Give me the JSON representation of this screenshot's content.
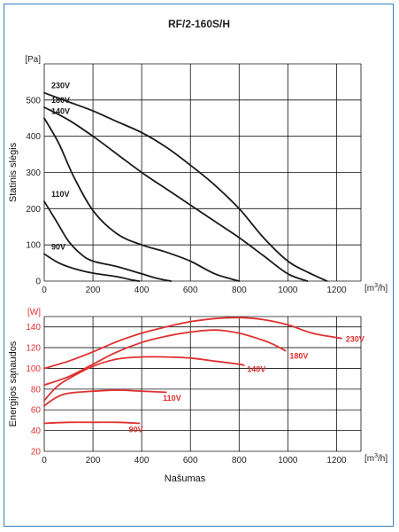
{
  "title": "RF/2-160S/H",
  "colors": {
    "frame": "#2f7fc1",
    "pressure": "#1a1a1a",
    "power": "#e03030",
    "grid": "#111111"
  },
  "chart_data": [
    {
      "type": "line",
      "ylabel": "Statinis slėgis",
      "yunit": "[Pa]",
      "xunit_base": "[m",
      "xunit_sup": "3",
      "xunit_tail": "/h]",
      "xlim": [
        0,
        1300
      ],
      "ylim": [
        0,
        600
      ],
      "xticks": [
        0,
        200,
        400,
        600,
        800,
        1000,
        1200
      ],
      "yticks": [
        0,
        100,
        200,
        300,
        400,
        500
      ],
      "grid": true,
      "series": [
        {
          "name": "230V",
          "points": [
            [
              0,
              520
            ],
            [
              100,
              495
            ],
            [
              200,
              470
            ],
            [
              300,
              440
            ],
            [
              400,
              410
            ],
            [
              500,
              370
            ],
            [
              600,
              320
            ],
            [
              700,
              265
            ],
            [
              800,
              200
            ],
            [
              900,
              120
            ],
            [
              1000,
              55
            ],
            [
              1080,
              25
            ],
            [
              1160,
              0
            ]
          ]
        },
        {
          "name": "180V",
          "points": [
            [
              0,
              480
            ],
            [
              100,
              445
            ],
            [
              200,
              400
            ],
            [
              300,
              350
            ],
            [
              400,
              300
            ],
            [
              500,
              255
            ],
            [
              600,
              210
            ],
            [
              700,
              165
            ],
            [
              800,
              120
            ],
            [
              900,
              70
            ],
            [
              1000,
              20
            ],
            [
              1080,
              0
            ]
          ]
        },
        {
          "name": "140V",
          "points": [
            [
              0,
              450
            ],
            [
              60,
              380
            ],
            [
              120,
              290
            ],
            [
              200,
              195
            ],
            [
              300,
              130
            ],
            [
              400,
              100
            ],
            [
              500,
              80
            ],
            [
              600,
              55
            ],
            [
              700,
              20
            ],
            [
              800,
              0
            ]
          ]
        },
        {
          "name": "110V",
          "points": [
            [
              0,
              220
            ],
            [
              50,
              165
            ],
            [
              100,
              110
            ],
            [
              150,
              75
            ],
            [
              200,
              55
            ],
            [
              300,
              40
            ],
            [
              400,
              20
            ],
            [
              460,
              8
            ],
            [
              520,
              0
            ]
          ]
        },
        {
          "name": "90V",
          "points": [
            [
              0,
              75
            ],
            [
              60,
              50
            ],
            [
              120,
              35
            ],
            [
              200,
              22
            ],
            [
              300,
              12
            ],
            [
              360,
              3
            ],
            [
              390,
              0
            ]
          ]
        }
      ]
    },
    {
      "type": "line",
      "ylabel": "Energijos sąnaudos",
      "yunit": "[W]",
      "xlabel": "Našumas",
      "xunit_base": "[m",
      "xunit_sup": "3",
      "xunit_tail": "/h]",
      "xlim": [
        0,
        1300
      ],
      "ylim": [
        20,
        150
      ],
      "xticks": [
        0,
        200,
        400,
        600,
        800,
        1000,
        1200
      ],
      "yticks": [
        20,
        40,
        60,
        80,
        100,
        120,
        140
      ],
      "grid": true,
      "series": [
        {
          "name": "230V",
          "points": [
            [
              0,
              100
            ],
            [
              100,
              107
            ],
            [
              200,
              116
            ],
            [
              300,
              126
            ],
            [
              400,
              134
            ],
            [
              500,
              140
            ],
            [
              600,
              145
            ],
            [
              700,
              148
            ],
            [
              800,
              149
            ],
            [
              900,
              147
            ],
            [
              1000,
              142
            ],
            [
              1100,
              134
            ],
            [
              1220,
              129
            ]
          ]
        },
        {
          "name": "180V",
          "points": [
            [
              0,
              84
            ],
            [
              100,
              92
            ],
            [
              200,
              104
            ],
            [
              300,
              116
            ],
            [
              400,
              125
            ],
            [
              500,
              131
            ],
            [
              600,
              135
            ],
            [
              700,
              137
            ],
            [
              800,
              134
            ],
            [
              900,
              127
            ],
            [
              950,
              122
            ],
            [
              990,
              117
            ]
          ]
        },
        {
          "name": "140V",
          "points": [
            [
              0,
              69
            ],
            [
              50,
              82
            ],
            [
              100,
              90
            ],
            [
              200,
              102
            ],
            [
              300,
              109
            ],
            [
              400,
              111
            ],
            [
              500,
              111
            ],
            [
              600,
              110
            ],
            [
              700,
              107
            ],
            [
              800,
              104
            ],
            [
              820,
              103
            ]
          ]
        },
        {
          "name": "110V",
          "points": [
            [
              0,
              64
            ],
            [
              50,
              72
            ],
            [
              100,
              76
            ],
            [
              200,
              78
            ],
            [
              300,
              79
            ],
            [
              400,
              78
            ],
            [
              500,
              77
            ]
          ]
        },
        {
          "name": "90V",
          "points": [
            [
              0,
              47
            ],
            [
              100,
              48
            ],
            [
              200,
              48
            ],
            [
              300,
              48
            ],
            [
              390,
              47
            ]
          ]
        }
      ],
      "labels_at": {
        "230V": [
          1230,
          129
        ],
        "180V": [
          1000,
          113
        ],
        "140V": [
          825,
          100
        ],
        "110V": [
          480,
          72
        ],
        "90V": [
          340,
          42
        ]
      }
    }
  ]
}
